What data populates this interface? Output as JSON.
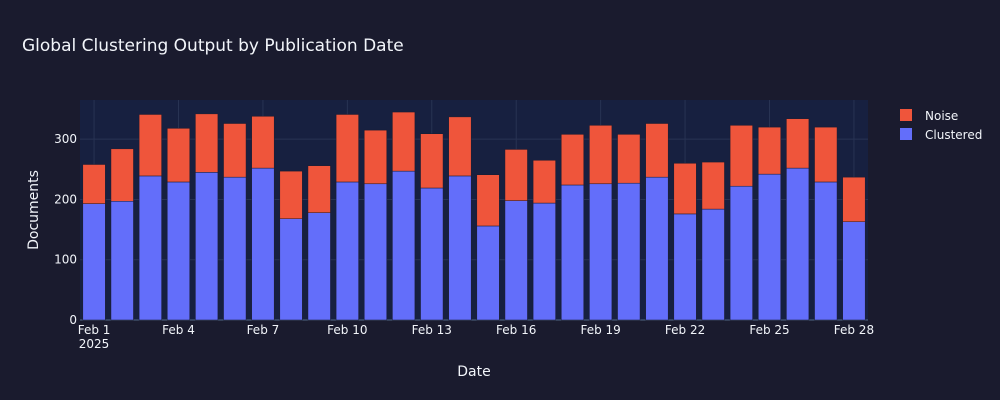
{
  "chart_data": {
    "type": "bar",
    "barmode": "stack",
    "title": "Global Clustering Output by Publication Date",
    "xlabel": "Date",
    "ylabel": "Documents",
    "year_label": "2025",
    "ylim": [
      0,
      365
    ],
    "grid": true,
    "legend_placement": "top-right",
    "categories": [
      "2025-02-01",
      "2025-02-02",
      "2025-02-03",
      "2025-02-04",
      "2025-02-05",
      "2025-02-06",
      "2025-02-07",
      "2025-02-08",
      "2025-02-09",
      "2025-02-10",
      "2025-02-11",
      "2025-02-12",
      "2025-02-13",
      "2025-02-14",
      "2025-02-15",
      "2025-02-16",
      "2025-02-17",
      "2025-02-18",
      "2025-02-19",
      "2025-02-20",
      "2025-02-21",
      "2025-02-22",
      "2025-02-23",
      "2025-02-24",
      "2025-02-25",
      "2025-02-26",
      "2025-02-27",
      "2025-02-28"
    ],
    "x_ticks": [
      "Feb 1",
      "Feb 4",
      "Feb 7",
      "Feb 10",
      "Feb 13",
      "Feb 16",
      "Feb 19",
      "Feb 22",
      "Feb 25",
      "Feb 28"
    ],
    "y_ticks": [
      0,
      100,
      200,
      300
    ],
    "series": [
      {
        "name": "Clustered",
        "color": "#636efa",
        "values": [
          193,
          197,
          239,
          229,
          245,
          237,
          252,
          168,
          178,
          229,
          226,
          247,
          219,
          239,
          156,
          198,
          194,
          224,
          226,
          227,
          237,
          176,
          184,
          222,
          242,
          252,
          229,
          163
        ]
      },
      {
        "name": "Noise",
        "color": "#ef553b",
        "values": [
          65,
          87,
          102,
          89,
          97,
          89,
          86,
          79,
          78,
          112,
          89,
          98,
          90,
          98,
          85,
          85,
          71,
          84,
          97,
          81,
          89,
          84,
          78,
          101,
          78,
          82,
          91,
          74
        ]
      }
    ],
    "colors": {
      "paper_bg": "#1a1b2e",
      "plot_bg": "#172040",
      "grid": "#283353",
      "text": "#f2f5fa"
    }
  }
}
